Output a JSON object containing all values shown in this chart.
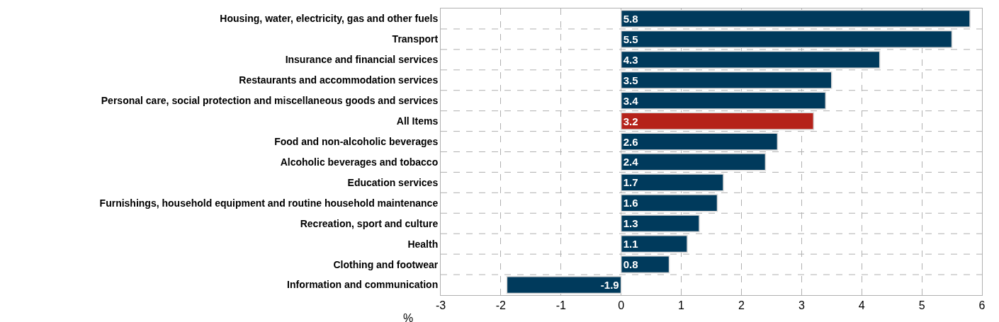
{
  "chart_data": {
    "type": "bar",
    "orientation": "horizontal",
    "xlabel": "%",
    "categories": [
      "Housing, water, electricity, gas and other fuels",
      "Transport",
      "Insurance and financial services",
      "Restaurants and accommodation services",
      "Personal care, social protection and miscellaneous goods and services",
      "All Items",
      "Food and non-alcoholic beverages",
      "Alcoholic beverages and tobacco",
      "Education services",
      "Furnishings, household equipment and routine household maintenance",
      "Recreation, sport and culture",
      "Health",
      "Clothing and footwear",
      "Information and communication"
    ],
    "values": [
      5.8,
      5.5,
      4.3,
      3.5,
      3.4,
      3.2,
      2.6,
      2.4,
      1.7,
      1.6,
      1.3,
      1.1,
      0.8,
      -1.9
    ],
    "colors": [
      "#003a5c",
      "#003a5c",
      "#003a5c",
      "#003a5c",
      "#003a5c",
      "#b5221a",
      "#003a5c",
      "#003a5c",
      "#003a5c",
      "#003a5c",
      "#003a5c",
      "#003a5c",
      "#003a5c",
      "#003a5c"
    ],
    "xlim": [
      -3,
      6
    ],
    "xticks": [
      -3,
      -2,
      -1,
      0,
      1,
      2,
      3,
      4,
      5,
      6
    ],
    "grid": true,
    "data_labels": true
  }
}
